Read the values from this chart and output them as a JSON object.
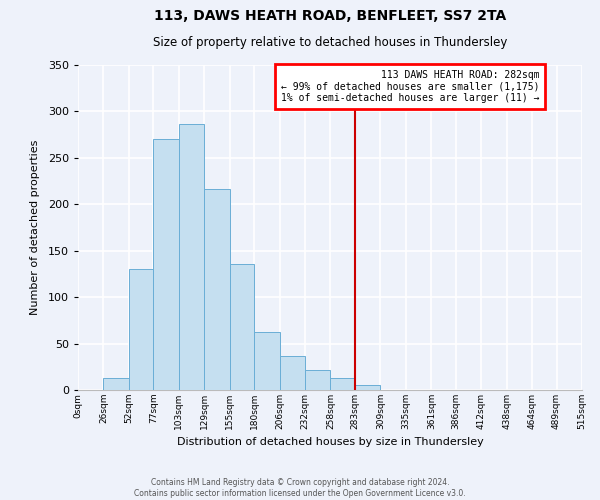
{
  "title": "113, DAWS HEATH ROAD, BENFLEET, SS7 2TA",
  "subtitle": "Size of property relative to detached houses in Thundersley",
  "xlabel": "Distribution of detached houses by size in Thundersley",
  "ylabel": "Number of detached properties",
  "bar_values": [
    0,
    13,
    130,
    270,
    287,
    216,
    136,
    63,
    37,
    22,
    13,
    5,
    0,
    0,
    0,
    0,
    0,
    0,
    0,
    0
  ],
  "bin_edges": [
    0,
    26,
    52,
    77,
    103,
    129,
    155,
    180,
    206,
    232,
    258,
    283,
    309,
    335,
    361,
    386,
    412,
    438,
    464,
    489,
    515
  ],
  "tick_labels": [
    "0sqm",
    "26sqm",
    "52sqm",
    "77sqm",
    "103sqm",
    "129sqm",
    "155sqm",
    "180sqm",
    "206sqm",
    "232sqm",
    "258sqm",
    "283sqm",
    "309sqm",
    "335sqm",
    "361sqm",
    "386sqm",
    "412sqm",
    "438sqm",
    "464sqm",
    "489sqm",
    "515sqm"
  ],
  "bar_color": "#c5dff0",
  "bar_edgecolor": "#6aaed6",
  "vline_x": 283,
  "vline_color": "#cc0000",
  "ylim": [
    0,
    350
  ],
  "yticks": [
    0,
    50,
    100,
    150,
    200,
    250,
    300,
    350
  ],
  "annotation_title": "113 DAWS HEATH ROAD: 282sqm",
  "annotation_line1": "← 99% of detached houses are smaller (1,175)",
  "annotation_line2": "1% of semi-detached houses are larger (11) →",
  "footer1": "Contains HM Land Registry data © Crown copyright and database right 2024.",
  "footer2": "Contains public sector information licensed under the Open Government Licence v3.0.",
  "bg_color": "#eef2fa"
}
